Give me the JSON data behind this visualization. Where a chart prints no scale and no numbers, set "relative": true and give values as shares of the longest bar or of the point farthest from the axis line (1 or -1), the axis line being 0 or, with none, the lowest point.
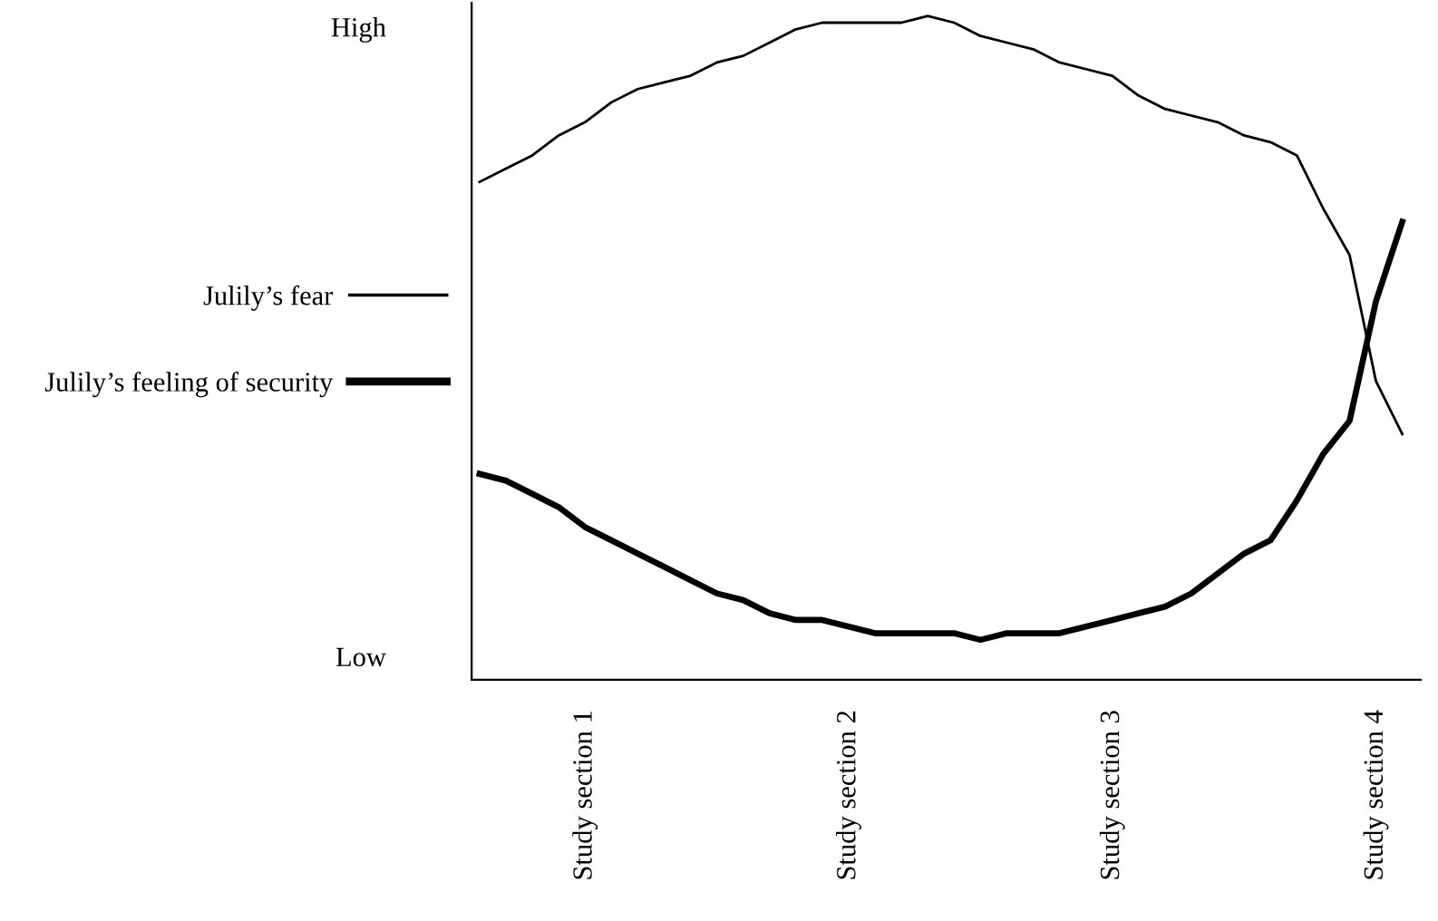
{
  "chart_data": {
    "type": "line",
    "relative": true,
    "legend": "left",
    "grid": false,
    "marker": "none",
    "line_style": "solid",
    "categories": [
      null,
      null,
      null,
      null,
      "Study section 1",
      null,
      null,
      null,
      null,
      null,
      null,
      null,
      null,
      null,
      "Study section 2",
      null,
      null,
      null,
      null,
      null,
      null,
      null,
      null,
      null,
      "Study section 3",
      null,
      null,
      null,
      null,
      null,
      null,
      null,
      null,
      null,
      "Study section 4",
      null
    ],
    "annotations": [
      "High",
      "Low"
    ],
    "series": [
      {
        "name": "Julily’s fear",
        "color": "#000000",
        "values": [
          0.75,
          0.77,
          0.79,
          0.82,
          0.84,
          0.87,
          0.89,
          0.9,
          0.91,
          0.93,
          0.94,
          0.96,
          0.98,
          0.99,
          0.99,
          0.99,
          0.99,
          1.0,
          0.99,
          0.97,
          0.96,
          0.95,
          0.93,
          0.92,
          0.91,
          0.88,
          0.86,
          0.85,
          0.84,
          0.82,
          0.81,
          0.79,
          0.71,
          0.64,
          0.45,
          0.37
        ]
      },
      {
        "name": "Julily’s feeling of security",
        "color": "#000000",
        "values": [
          0.31,
          0.3,
          0.28,
          0.26,
          0.23,
          0.21,
          0.19,
          0.17,
          0.15,
          0.13,
          0.12,
          0.1,
          0.09,
          0.09,
          0.08,
          0.07,
          0.07,
          0.07,
          0.07,
          0.06,
          0.07,
          0.07,
          0.07,
          0.08,
          0.09,
          0.1,
          0.11,
          0.13,
          0.16,
          0.19,
          0.21,
          0.27,
          0.34,
          0.39,
          0.57,
          0.69
        ]
      }
    ]
  }
}
